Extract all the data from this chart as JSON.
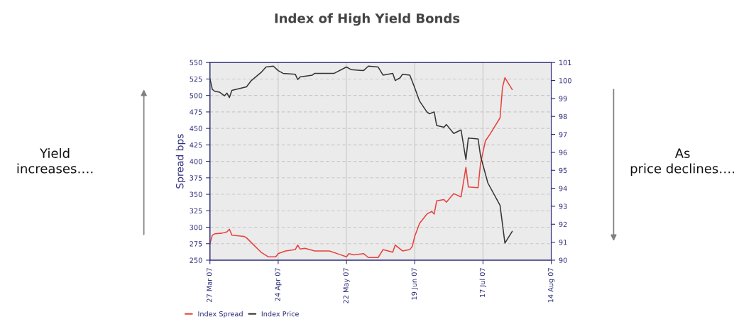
{
  "chart_data": {
    "type": "line",
    "title": "Index of High Yield Bonds",
    "ylabel": "Spread bps",
    "annotations": [
      "Yield increases….",
      "As price declines…."
    ],
    "xlim": [
      "2007-03-27",
      "2007-08-14"
    ],
    "xticks": [
      {
        "value": "2007-03-27",
        "label": "27 Mar 07"
      },
      {
        "value": "2007-04-24",
        "label": "24 Apr 07"
      },
      {
        "value": "2007-05-22",
        "label": "22 May 07"
      },
      {
        "value": "2007-06-19",
        "label": "19 Jun 07"
      },
      {
        "value": "2007-07-17",
        "label": "17 Jul 07"
      },
      {
        "value": "2007-08-14",
        "label": "14 Aug 07"
      }
    ],
    "ylim": [
      250,
      550
    ],
    "yticks": [
      250,
      275,
      300,
      325,
      350,
      375,
      400,
      425,
      450,
      475,
      500,
      525,
      550
    ],
    "y2lim": [
      90,
      101
    ],
    "y2ticks": [
      90,
      91,
      92,
      93,
      94,
      95,
      96,
      97,
      98,
      99,
      100,
      101
    ],
    "grid": true,
    "legend": "bottom",
    "series": [
      {
        "name": "Index Spread",
        "color": "#e8413c",
        "x": [
          "2007-03-27",
          "2007-03-28",
          "2007-03-29",
          "2007-04-01",
          "2007-04-03",
          "2007-04-04",
          "2007-04-05",
          "2007-04-10",
          "2007-04-11",
          "2007-04-14",
          "2007-04-17",
          "2007-04-20",
          "2007-04-23",
          "2007-04-24",
          "2007-04-27",
          "2007-05-01",
          "2007-05-02",
          "2007-05-03",
          "2007-05-05",
          "2007-05-09",
          "2007-05-15",
          "2007-05-19",
          "2007-05-22",
          "2007-05-23",
          "2007-05-25",
          "2007-05-29",
          "2007-05-31",
          "2007-06-04",
          "2007-06-06",
          "2007-06-10",
          "2007-06-11",
          "2007-06-12",
          "2007-06-14",
          "2007-06-17",
          "2007-06-18",
          "2007-06-19",
          "2007-06-21",
          "2007-06-24",
          "2007-06-26",
          "2007-06-27",
          "2007-06-28",
          "2007-07-01",
          "2007-07-02",
          "2007-07-05",
          "2007-07-08",
          "2007-07-10",
          "2007-07-11",
          "2007-07-15",
          "2007-07-16",
          "2007-07-18",
          "2007-07-20",
          "2007-07-24",
          "2007-07-25",
          "2007-07-26",
          "2007-07-29"
        ],
        "values": [
          275,
          288,
          290,
          291,
          293,
          297,
          288,
          286,
          284,
          273,
          262,
          255,
          255,
          260,
          264,
          266,
          273,
          267,
          268,
          264,
          264,
          259,
          255,
          260,
          258,
          260,
          254,
          254,
          266,
          262,
          273,
          270,
          264,
          266,
          271,
          286,
          306,
          320,
          324,
          320,
          340,
          342,
          338,
          351,
          346,
          391,
          361,
          360,
          397,
          431,
          442,
          466,
          512,
          527,
          509
        ]
      },
      {
        "name": "Index Price",
        "color": "#333333",
        "axis": "y2",
        "x": [
          "2007-03-27",
          "2007-03-28",
          "2007-03-29",
          "2007-03-31",
          "2007-04-02",
          "2007-04-03",
          "2007-04-04",
          "2007-04-05",
          "2007-04-08",
          "2007-04-11",
          "2007-04-13",
          "2007-04-17",
          "2007-04-19",
          "2007-04-22",
          "2007-04-24",
          "2007-04-26",
          "2007-05-01",
          "2007-05-02",
          "2007-05-03",
          "2007-05-08",
          "2007-05-09",
          "2007-05-17",
          "2007-05-22",
          "2007-05-24",
          "2007-05-29",
          "2007-05-31",
          "2007-06-04",
          "2007-06-06",
          "2007-06-10",
          "2007-06-11",
          "2007-06-13",
          "2007-06-14",
          "2007-06-17",
          "2007-06-19",
          "2007-06-21",
          "2007-06-24",
          "2007-06-25",
          "2007-06-27",
          "2007-06-28",
          "2007-07-01",
          "2007-07-02",
          "2007-07-05",
          "2007-07-08",
          "2007-07-10",
          "2007-07-11",
          "2007-07-15",
          "2007-07-16",
          "2007-07-19",
          "2007-07-24",
          "2007-07-26",
          "2007-07-29"
        ],
        "values": [
          100.1,
          99.5,
          99.4,
          99.35,
          99.15,
          99.3,
          99.05,
          99.45,
          99.55,
          99.65,
          100.0,
          100.45,
          100.75,
          100.8,
          100.55,
          100.4,
          100.35,
          100.05,
          100.2,
          100.3,
          100.4,
          100.4,
          100.75,
          100.6,
          100.55,
          100.8,
          100.75,
          100.3,
          100.4,
          100.0,
          100.15,
          100.35,
          100.3,
          99.6,
          98.85,
          98.25,
          98.15,
          98.25,
          97.5,
          97.4,
          97.55,
          97.05,
          97.25,
          95.6,
          96.8,
          96.75,
          95.8,
          94.3,
          93.05,
          90.95,
          91.6
        ]
      }
    ]
  }
}
